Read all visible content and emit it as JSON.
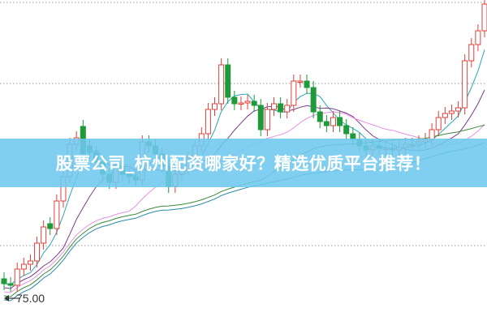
{
  "banner": {
    "title": "股票公司_杭州配资哪家好？精选优质平台推荐！"
  },
  "chart_data": {
    "type": "candlestick",
    "title": "",
    "xlabel": "",
    "ylabel": "",
    "ylim": [
      73.35,
      93.4
    ],
    "grid": true,
    "grid_values": [
      93.25,
      88.25,
      83.25,
      78.25
    ],
    "low_marker": {
      "label": "75.00",
      "value": 75.0
    },
    "up_color": "#e0403a",
    "down_color": "#1e9a3a",
    "ma_colors": [
      "#2aa7b8",
      "#7a3a8a",
      "#e890e0",
      "#3a8a3a",
      "#2a8aa8"
    ],
    "ma_periods": [
      5,
      10,
      20,
      40,
      60
    ],
    "open": [
      76.2,
      75.9,
      75.8,
      76.8,
      77.1,
      77.3,
      78.4,
      79.6,
      79.3,
      81.0,
      82.5,
      84.5,
      85.6,
      84.4,
      84.0,
      83.4,
      82.65,
      82.15,
      83.15,
      82.65,
      82.5,
      82.3,
      84.65,
      84.4,
      83.9,
      83.15,
      81.9,
      82.65,
      82.9,
      83.65,
      84.4,
      85.15,
      86.65,
      87.0,
      89.4,
      87.4,
      87.0,
      87.05,
      87.15,
      86.9,
      85.4,
      86.65,
      87.0,
      86.5,
      86.9,
      88.4,
      88.4,
      88.0,
      86.5,
      85.9,
      85.65,
      86.15,
      85.65,
      85.15,
      84.8,
      84.4,
      84.15,
      84.4,
      84.25,
      84.25,
      84.15,
      84.3,
      84.5,
      84.5,
      84.65,
      84.8,
      85.4,
      86.15,
      86.4,
      86.55,
      86.75,
      89.65,
      90.65,
      91.5
    ],
    "close": [
      75.9,
      75.8,
      76.8,
      77.1,
      77.3,
      78.4,
      79.4,
      79.3,
      81.0,
      82.5,
      84.5,
      84.9,
      83.9,
      84.0,
      83.4,
      82.65,
      82.15,
      83.15,
      82.65,
      82.5,
      82.3,
      84.65,
      84.4,
      83.9,
      83.15,
      81.9,
      82.65,
      82.9,
      83.65,
      84.4,
      85.15,
      86.65,
      87.0,
      89.4,
      87.4,
      87.0,
      87.05,
      87.15,
      86.9,
      85.4,
      86.65,
      87.0,
      86.5,
      86.9,
      88.4,
      88.4,
      88.0,
      86.5,
      85.9,
      85.65,
      86.15,
      85.65,
      85.15,
      84.8,
      84.4,
      84.15,
      84.4,
      84.25,
      84.25,
      84.15,
      84.3,
      84.5,
      84.5,
      84.65,
      84.8,
      85.4,
      86.15,
      86.4,
      86.55,
      86.75,
      89.65,
      90.65,
      91.5,
      93.15
    ]
  }
}
